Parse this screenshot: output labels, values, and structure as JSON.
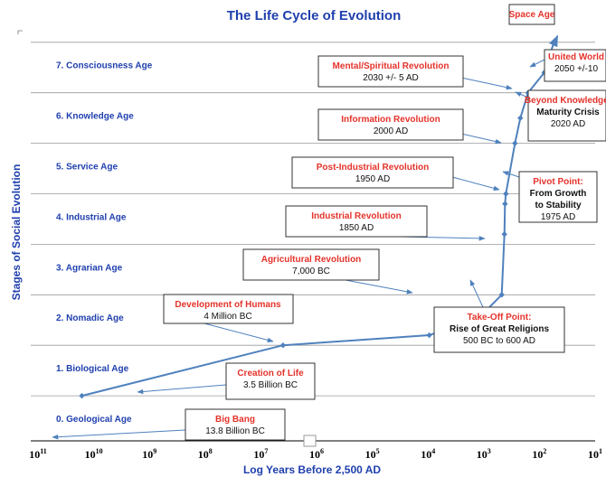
{
  "chart_data": {
    "type": "line",
    "title": "The Life Cycle of Evolution",
    "xlabel": "Log Years Before 2,500 AD",
    "ylabel": "Stages of Social Evolution",
    "x_scale": "log",
    "x_reversed": true,
    "xlim": [
      100000000000,
      10
    ],
    "x_ticks": [
      {
        "base": "10",
        "exp": "11"
      },
      {
        "base": "10",
        "exp": "10"
      },
      {
        "base": "10",
        "exp": "9"
      },
      {
        "base": "10",
        "exp": "8"
      },
      {
        "base": "10",
        "exp": "7"
      },
      {
        "base": "10",
        "exp": "6"
      },
      {
        "base": "10",
        "exp": "5"
      },
      {
        "base": "10",
        "exp": "4"
      },
      {
        "base": "10",
        "exp": "3"
      },
      {
        "base": "10",
        "exp": "2"
      },
      {
        "base": "10",
        "exp": "1"
      }
    ],
    "stages": [
      "0. Geological Age",
      "1. Biological Age",
      "2. Nomadic Age",
      "3. Agrarian Age",
      "4. Industrial Age",
      "5. Service Age",
      "6. Knowledge Age",
      "7. Consciousness Age"
    ],
    "ylim": [
      0,
      8
    ],
    "grid": true,
    "series": [
      {
        "color": "#4f81bd",
        "points": [
          {
            "x": 16300000000,
            "y": 1.0
          },
          {
            "x": 4000000,
            "y": 2.0
          },
          {
            "x": 9500,
            "y": 2.2
          },
          {
            "x": 1200,
            "y": 2.55
          },
          {
            "x": 475,
            "y": 3.0
          },
          {
            "x": 425,
            "y": 4.2
          },
          {
            "x": 415,
            "y": 4.8
          },
          {
            "x": 400,
            "y": 5.0
          },
          {
            "x": 275,
            "y": 6.0
          },
          {
            "x": 220,
            "y": 6.5
          },
          {
            "x": 160,
            "y": 7.0
          },
          {
            "x": 82,
            "y": 7.4
          },
          {
            "x": 55,
            "y": 8.0
          }
        ]
      }
    ],
    "annotations": [
      {
        "title": "Space Age",
        "lines": []
      },
      {
        "title": "United World",
        "lines": [
          "2050 +/-10"
        ]
      },
      {
        "title": "Mental/Spiritual Revolution",
        "lines": [
          "2030 +/- 5 AD"
        ]
      },
      {
        "title": "Beyond Knowledge:",
        "lines": [
          "Maturity Crisis",
          "2020 AD"
        ]
      },
      {
        "title": "Information Revolution",
        "lines": [
          "2000 AD"
        ]
      },
      {
        "title": "Pivot Point:",
        "lines": [
          "From Growth",
          "to Stability",
          "1975 AD"
        ]
      },
      {
        "title": "Post-Industrial Revolution",
        "lines": [
          "1950 AD"
        ]
      },
      {
        "title": "Industrial Revolution",
        "lines": [
          "1850 AD"
        ]
      },
      {
        "title": "Agricultural Revolution",
        "lines": [
          "7,000 BC"
        ]
      },
      {
        "title": "Take-Off Point:",
        "lines": [
          "Rise of Great Religions",
          "500 BC to 600 AD"
        ]
      },
      {
        "title": "Development of Humans",
        "lines": [
          "4 Million BC"
        ]
      },
      {
        "title": "Creation of Life",
        "lines": [
          "3.5 Billion BC"
        ]
      },
      {
        "title": "Big Bang",
        "lines": [
          "13.8 Billion BC"
        ]
      }
    ]
  }
}
